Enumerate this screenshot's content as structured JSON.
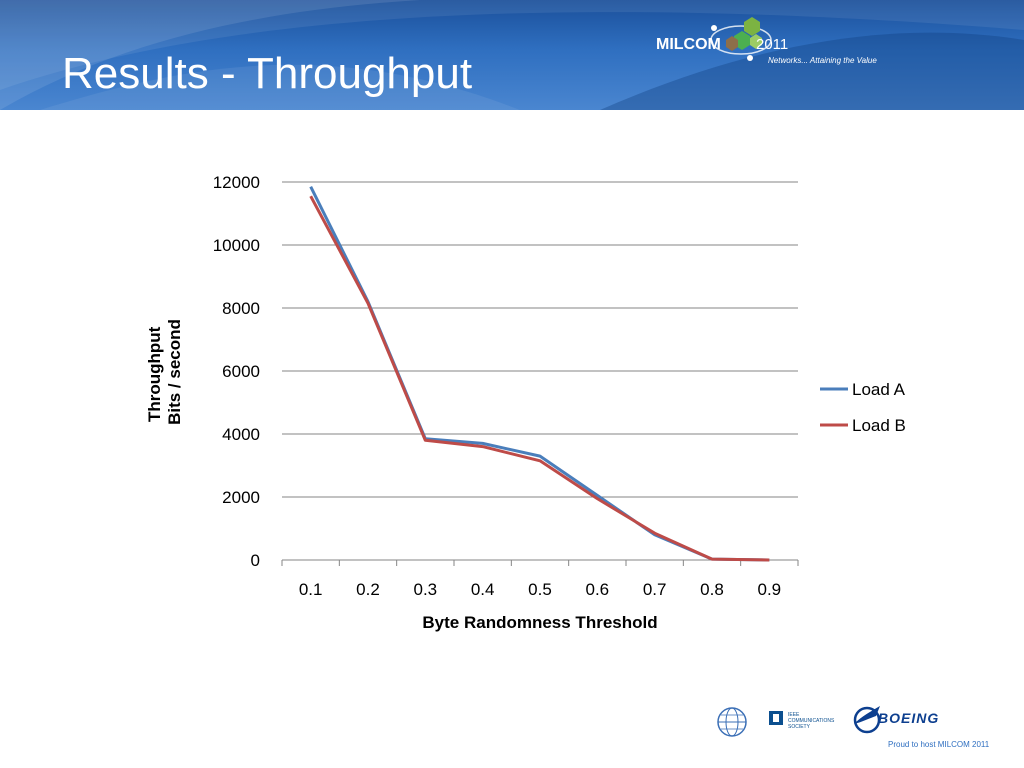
{
  "slide": {
    "title": "Results - Throughput",
    "header_color": "#2f6fc0"
  },
  "header_logo": {
    "name": "MILCOM",
    "year": "2011",
    "tagline": "Networks... Attaining the Value"
  },
  "footer": {
    "ieee_text": "IEEE\nCOMMUNICATIONS\nSOCIETY",
    "boeing_text": "BOEING",
    "proud_text": "Proud to host MILCOM 2011"
  },
  "chart_data": {
    "type": "line",
    "xlabel": "Byte Randomness Threshold",
    "ylabel_lines": [
      "Throughput",
      "Bits / second"
    ],
    "categories": [
      "0.1",
      "0.2",
      "0.3",
      "0.4",
      "0.5",
      "0.6",
      "0.7",
      "0.8",
      "0.9"
    ],
    "ylim": [
      0,
      12000
    ],
    "yticks": [
      0,
      2000,
      4000,
      6000,
      8000,
      10000,
      12000
    ],
    "grid": true,
    "legend_position": "right",
    "series": [
      {
        "name": "Load A",
        "color": "#4a7ebb",
        "values": [
          11850,
          8200,
          3850,
          3700,
          3300,
          2050,
          800,
          30,
          0
        ]
      },
      {
        "name": "Load B",
        "color": "#be4b48",
        "values": [
          11550,
          8150,
          3800,
          3600,
          3150,
          1950,
          850,
          30,
          0
        ]
      }
    ]
  }
}
